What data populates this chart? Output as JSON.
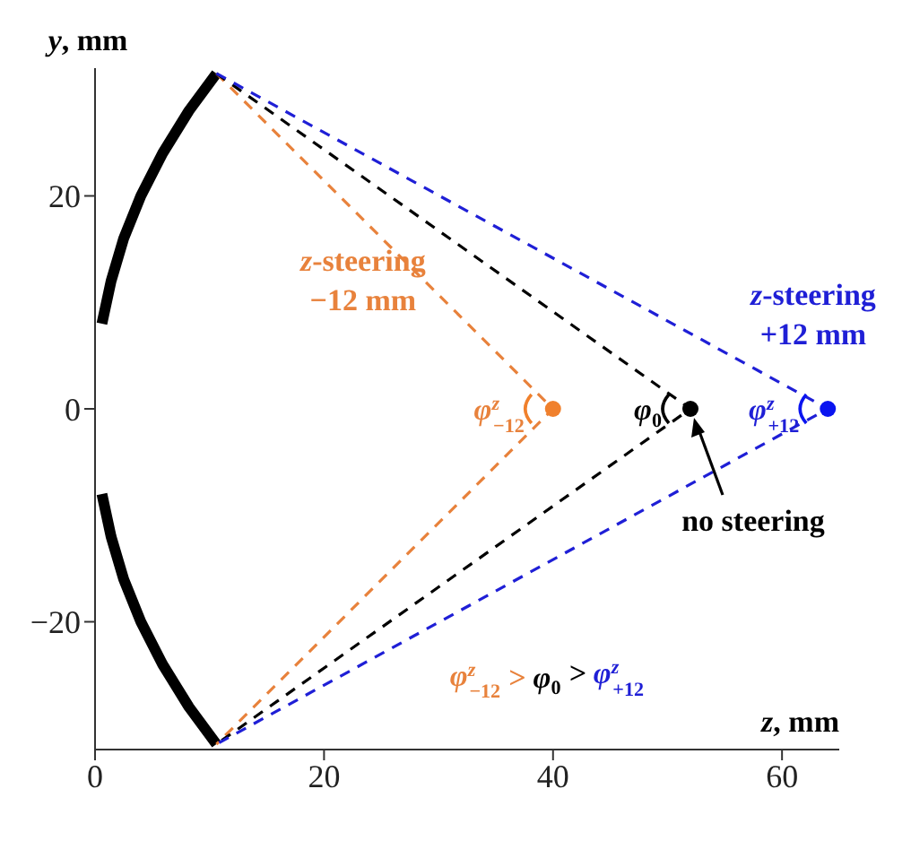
{
  "chart_data": {
    "type": "line",
    "xlabel": "z, mm",
    "ylabel": "y, mm",
    "xlim": [
      0,
      65
    ],
    "ylim": [
      -32,
      32
    ],
    "xticks": [
      0,
      20,
      40,
      60
    ],
    "yticks": [
      -20,
      0,
      20
    ],
    "series": [
      {
        "x": [
          10.6,
          8.2,
          5.9,
          4.0,
          2.5,
          1.4,
          0.6
        ],
        "values": [
          31.5,
          28,
          24,
          20,
          16,
          12,
          8
        ],
        "color": "#000000",
        "line_style": "solid",
        "marker": "none"
      },
      {
        "x": [
          10.6,
          8.2,
          5.9,
          4.0,
          2.5,
          1.4,
          0.6
        ],
        "values": [
          -31.5,
          -28,
          -24,
          -20,
          -16,
          -12,
          -8
        ],
        "color": "#000000",
        "line_style": "solid",
        "marker": "none"
      },
      {
        "x": [
          10.6,
          40,
          10.6
        ],
        "values": [
          31.5,
          0,
          -31.5
        ],
        "color": "#e8823c",
        "line_style": "dashed",
        "marker": "none"
      },
      {
        "x": [
          10.6,
          52,
          10.6
        ],
        "values": [
          31.5,
          0,
          -31.5
        ],
        "color": "#000000",
        "line_style": "dashed",
        "marker": "none"
      },
      {
        "x": [
          10.6,
          64,
          10.6
        ],
        "values": [
          31.5,
          0,
          -31.5
        ],
        "color": "#1f1fd6",
        "line_style": "dashed",
        "marker": "none"
      },
      {
        "type": "scatter",
        "x": [
          40,
          52,
          64
        ],
        "values": [
          0,
          0,
          0
        ],
        "colors": [
          "#f0802c",
          "#000000",
          "#0a14f0"
        ],
        "marker": "circle"
      }
    ],
    "annotations": [
      "z-steering\n−12 mm",
      "z-steering\n+12 mm",
      {
        "text": "φ$^{z}$$_{−12}$",
        "x": 40,
        "y": 0
      },
      {
        "text": "φ$_{0}$",
        "x": 52,
        "y": 0
      },
      {
        "text": "φ$^{z}$$_{+12}$",
        "x": 64,
        "y": 0
      },
      "no steering",
      "φ$^{z}$$_{−12}$ > ",
      "φ$_{0}$ > ",
      "φ$^{z}$$_{+12}$"
    ]
  }
}
